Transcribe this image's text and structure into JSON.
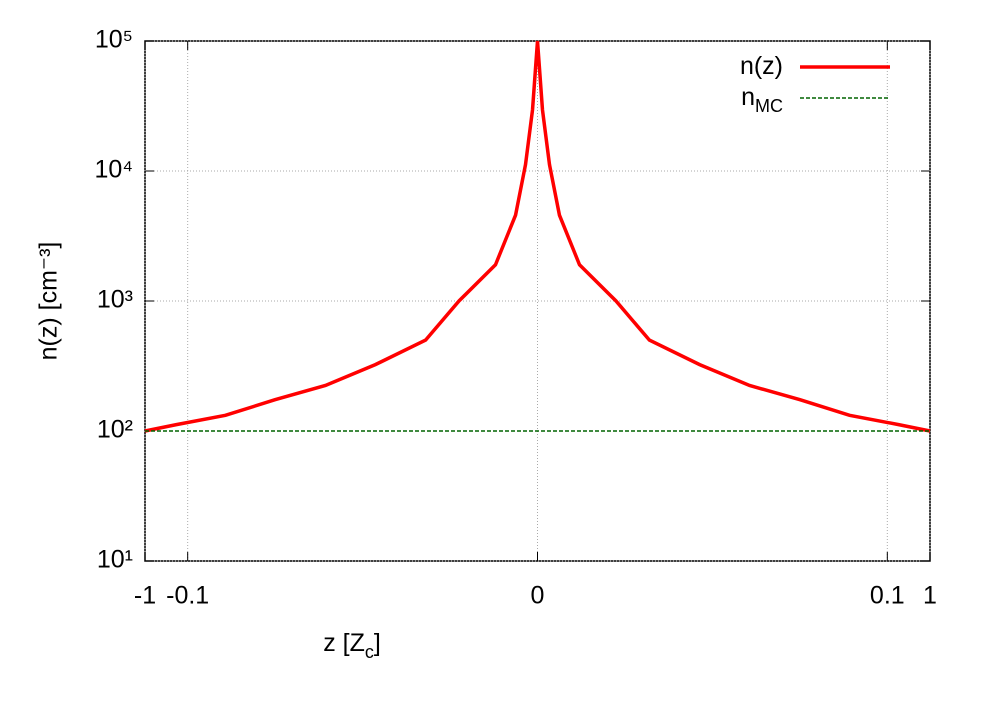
{
  "chart_data": {
    "type": "line",
    "xlabel": "z [Z",
    "xlabel_sub": "c",
    "xlabel_end": "]",
    "ylabel": "n(z)   [cm⁻³]",
    "xscale": {
      "type": "signed-power",
      "exponent": 0.05
    },
    "yscale": "log",
    "xlim": [
      -1,
      1
    ],
    "xticks": [
      -1,
      -0.1,
      0,
      0.1,
      1
    ],
    "ylim": [
      10,
      100000
    ],
    "yticks": [
      {
        "value": 10,
        "label": "10¹"
      },
      {
        "value": 100,
        "label": "10²"
      },
      {
        "value": 1000,
        "label": "10³"
      },
      {
        "value": 10000,
        "label": "10⁴"
      },
      {
        "value": 100000,
        "label": "10⁵"
      }
    ],
    "grid": true,
    "legend": "top-right",
    "series": [
      {
        "name": "n(z)",
        "color": "#ff0000",
        "dash": "solid",
        "x": [
          -1,
          -0.189,
          -0.0102,
          -0.00032,
          -4.5e-06,
          -2.1e-08,
          -1.26e-11,
          -1.05e-14,
          -3.9e-20,
          -9e-26,
          -5e-31,
          -1.2e-38,
          0,
          1.2e-38,
          5e-31,
          9e-26,
          3.9e-20,
          1.05e-14,
          1.26e-11,
          2.1e-08,
          4.5e-06,
          0.00032,
          0.0102,
          0.189,
          1
        ],
        "values": [
          100,
          112,
          132,
          174,
          224,
          324,
          500,
          1000,
          1900,
          4570,
          11200,
          29500,
          100000,
          29500,
          11200,
          4570,
          1900,
          1000,
          500,
          324,
          224,
          174,
          132,
          112,
          100
        ]
      },
      {
        "name": "n",
        "name_sub": "MC",
        "color": "#006400",
        "dash": "dashed",
        "x": [
          -1,
          1
        ],
        "values": [
          100,
          100
        ]
      }
    ]
  }
}
